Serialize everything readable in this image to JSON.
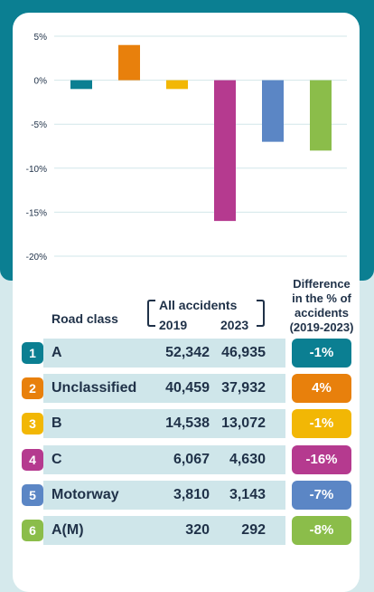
{
  "chart_data": {
    "type": "bar",
    "categories": [
      "A",
      "Unclassified",
      "B",
      "C",
      "Motorway",
      "A(M)"
    ],
    "values": [
      -1,
      4,
      -1,
      -16,
      -7,
      -8
    ],
    "ylim": [
      -20,
      5
    ],
    "yticks": [
      "5%",
      "0%",
      "-5%",
      "-10%",
      "-15%",
      "-20%"
    ],
    "grid": true,
    "colors": [
      "#0b7f92",
      "#e8800c",
      "#f2b705",
      "#b53a8f",
      "#5b86c5",
      "#8bbd4a"
    ]
  },
  "table": {
    "col_road_class": "Road class",
    "col_all_accidents": "All accidents",
    "col_2019": "2019",
    "col_2023": "2023",
    "col_difference": [
      "Difference",
      "in the % of",
      "accidents",
      "(2019-2023)"
    ],
    "rows": [
      {
        "num": "1",
        "label": "A",
        "v2019": "52,342",
        "v2023": "46,935",
        "diff": "-1%"
      },
      {
        "num": "2",
        "label": "Unclassified",
        "v2019": "40,459",
        "v2023": "37,932",
        "diff": "4%"
      },
      {
        "num": "3",
        "label": "B",
        "v2019": "14,538",
        "v2023": "13,072",
        "diff": "-1%"
      },
      {
        "num": "4",
        "label": "C",
        "v2019": "6,067",
        "v2023": "4,630",
        "diff": "-16%"
      },
      {
        "num": "5",
        "label": "Motorway",
        "v2019": "3,810",
        "v2023": "3,143",
        "diff": "-7%"
      },
      {
        "num": "6",
        "label": "A(M)",
        "v2019": "320",
        "v2023": "292",
        "diff": "-8%"
      }
    ]
  }
}
